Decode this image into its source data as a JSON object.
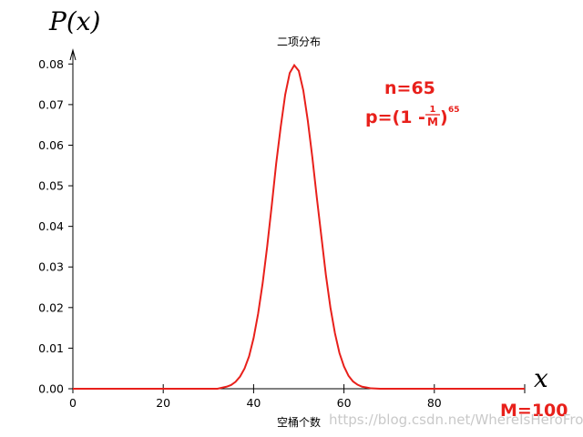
{
  "chart_data": {
    "type": "line",
    "title": "二项分布",
    "xlabel": "空桶个数",
    "ylabel": "",
    "xlim": [
      0,
      100
    ],
    "ylim": [
      0,
      0.085
    ],
    "x_ticks": [
      0,
      20,
      40,
      60,
      80
    ],
    "y_ticks": [
      0.0,
      0.01,
      0.02,
      0.03,
      0.04,
      0.05,
      0.06,
      0.07,
      0.08
    ],
    "x_tick_labels": [
      "0",
      "20",
      "40",
      "60",
      "80"
    ],
    "y_tick_labels": [
      "0.00",
      "0.01",
      "0.02",
      "0.03",
      "0.04",
      "0.05",
      "0.06",
      "0.07",
      "0.08"
    ],
    "grid": false,
    "series": [
      {
        "color": "#e8201b",
        "x": [
          0,
          2,
          4,
          6,
          8,
          10,
          12,
          14,
          16,
          18,
          20,
          22,
          24,
          26,
          28,
          30,
          32,
          34,
          35,
          36,
          37,
          38,
          39,
          40,
          41,
          42,
          43,
          44,
          45,
          46,
          47,
          48,
          49,
          50,
          51,
          52,
          53,
          54,
          55,
          56,
          57,
          58,
          59,
          60,
          61,
          62,
          63,
          64,
          65,
          66,
          67,
          68,
          70,
          72,
          74,
          76,
          78,
          80,
          82,
          84,
          86,
          88,
          90,
          92,
          94,
          96,
          98,
          100
        ],
        "y": [
          0,
          0,
          0,
          0,
          0,
          0,
          0,
          0,
          0,
          0,
          0,
          0,
          0,
          0,
          0,
          0,
          0,
          0.0005,
          0.0009,
          0.0017,
          0.003,
          0.005,
          0.008,
          0.0125,
          0.0185,
          0.026,
          0.035,
          0.045,
          0.0555,
          0.0645,
          0.0725,
          0.0778,
          0.0797,
          0.0783,
          0.0735,
          0.066,
          0.057,
          0.047,
          0.0375,
          0.028,
          0.02,
          0.0137,
          0.0088,
          0.0055,
          0.0032,
          0.0018,
          0.001,
          0.0005,
          0.0003,
          0.0001,
          5e-05,
          0,
          0,
          0,
          0,
          0,
          0,
          0,
          0,
          0,
          0,
          0,
          0,
          0,
          0,
          0,
          0,
          0
        ]
      }
    ],
    "annotations": {
      "n_text": "n=65",
      "p_prefix": "p=(1 - ",
      "p_frac_num": "1",
      "p_frac_den": "M",
      "p_suffix": ")",
      "p_exponent": "65",
      "m_text": "M=100",
      "y_symbol": "P(x)",
      "x_symbol": "x",
      "annotation_color": "#e8201b"
    },
    "watermark": "https://blog.csdn.net/WhereIsHeroFrom"
  }
}
